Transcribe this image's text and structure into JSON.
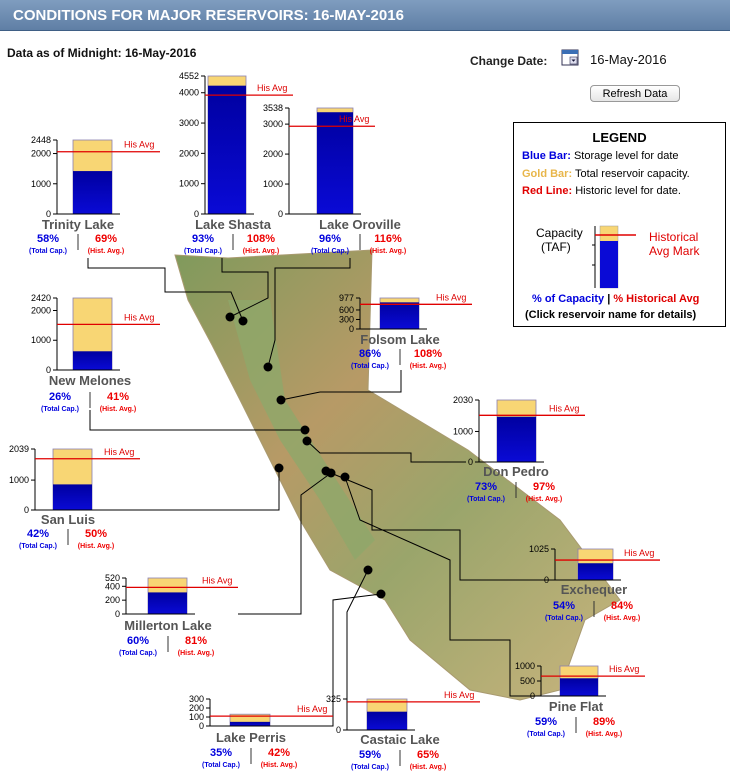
{
  "header": {
    "title": "CONDITIONS FOR MAJOR RESERVOIRS: 16-MAY-2016"
  },
  "as_of": "Data as of Midnight: 16-May-2016",
  "change_date": {
    "label": "Change Date:",
    "value": "16-May-2016",
    "icon": "calendar-icon"
  },
  "refresh_label": "Refresh Data",
  "legend": {
    "title": "LEGEND",
    "blue_key": "Blue Bar:",
    "blue_text": "Storage level for date",
    "gold_key": "Gold Bar:",
    "gold_text": "Total reservoir capacity.",
    "red_key": "Red Line:",
    "red_text": "Historic level for date.",
    "capacity_label_1": "Capacity",
    "capacity_label_2": "(TAF)",
    "hist_mark_1": "Historical",
    "hist_mark_2": "Avg Mark",
    "pct_cap": "% of Capacity",
    "sep": "|",
    "pct_hist": "% Historical Avg",
    "click_note": "(Click reservoir name for details)"
  },
  "colors": {
    "storage": "#0a0ad6",
    "capacity": "#f8d674",
    "hist_line": "#e00000",
    "header": "#6f8fb5"
  },
  "labels": {
    "his_avg": "His Avg",
    "total_cap": "(Total Cap.)",
    "hist_avg": "(Hist. Avg.)"
  },
  "chart_data": {
    "type": "bar",
    "title": "CONDITIONS FOR MAJOR RESERVOIRS: 16-MAY-2016",
    "units": "TAF",
    "reservoirs": [
      {
        "name": "Trinity Lake",
        "capacity": 2448,
        "storage": 1420,
        "hist_avg": 2060,
        "pct_capacity": "58%",
        "pct_hist": "69%",
        "ticks": [
          "0",
          "1000",
          "2000",
          "2448"
        ]
      },
      {
        "name": "Lake Shasta",
        "capacity": 4552,
        "storage": 4233,
        "hist_avg": 3920,
        "pct_capacity": "93%",
        "pct_hist": "108%",
        "ticks": [
          "0",
          "1000",
          "2000",
          "3000",
          "4000",
          "4552"
        ]
      },
      {
        "name": "Lake Oroville",
        "capacity": 3538,
        "storage": 3397,
        "hist_avg": 2930,
        "pct_capacity": "96%",
        "pct_hist": "116%",
        "ticks": [
          "0",
          "1000",
          "2000",
          "3000",
          "3538"
        ]
      },
      {
        "name": "Folsom Lake",
        "capacity": 977,
        "storage": 840,
        "hist_avg": 778,
        "pct_capacity": "86%",
        "pct_hist": "108%",
        "ticks": [
          "0",
          "300",
          "600",
          "977"
        ]
      },
      {
        "name": "New Melones",
        "capacity": 2420,
        "storage": 629,
        "hist_avg": 1534,
        "pct_capacity": "26%",
        "pct_hist": "41%",
        "ticks": [
          "0",
          "1000",
          "2000",
          "2420"
        ]
      },
      {
        "name": "Don Pedro",
        "capacity": 2030,
        "storage": 1482,
        "hist_avg": 1528,
        "pct_capacity": "73%",
        "pct_hist": "97%",
        "ticks": [
          "0",
          "1000",
          "2030"
        ]
      },
      {
        "name": "San Luis",
        "capacity": 2039,
        "storage": 856,
        "hist_avg": 1712,
        "pct_capacity": "42%",
        "pct_hist": "50%",
        "ticks": [
          "0",
          "1000",
          "2039"
        ]
      },
      {
        "name": "Exchequer",
        "capacity": 1025,
        "storage": 554,
        "hist_avg": 659,
        "pct_capacity": "54%",
        "pct_hist": "84%",
        "ticks": [
          "0",
          "1025"
        ]
      },
      {
        "name": "Millerton Lake",
        "capacity": 520,
        "storage": 312,
        "hist_avg": 385,
        "pct_capacity": "60%",
        "pct_hist": "81%",
        "ticks": [
          "0",
          "200",
          "400",
          "520"
        ]
      },
      {
        "name": "Pine Flat",
        "capacity": 1000,
        "storage": 590,
        "hist_avg": 663,
        "pct_capacity": "59%",
        "pct_hist": "89%",
        "ticks": [
          "0",
          "500",
          "1000"
        ]
      },
      {
        "name": "Lake Perris",
        "capacity": 131,
        "storage": 46,
        "hist_avg": 110,
        "pct_capacity": "35%",
        "pct_hist": "42%",
        "ticks": [
          "0",
          "100",
          "200",
          "300"
        ]
      },
      {
        "name": "Castaic Lake",
        "capacity": 325,
        "storage": 192,
        "hist_avg": 295,
        "pct_capacity": "59%",
        "pct_hist": "65%",
        "ticks": [
          "0",
          "325"
        ]
      }
    ]
  }
}
